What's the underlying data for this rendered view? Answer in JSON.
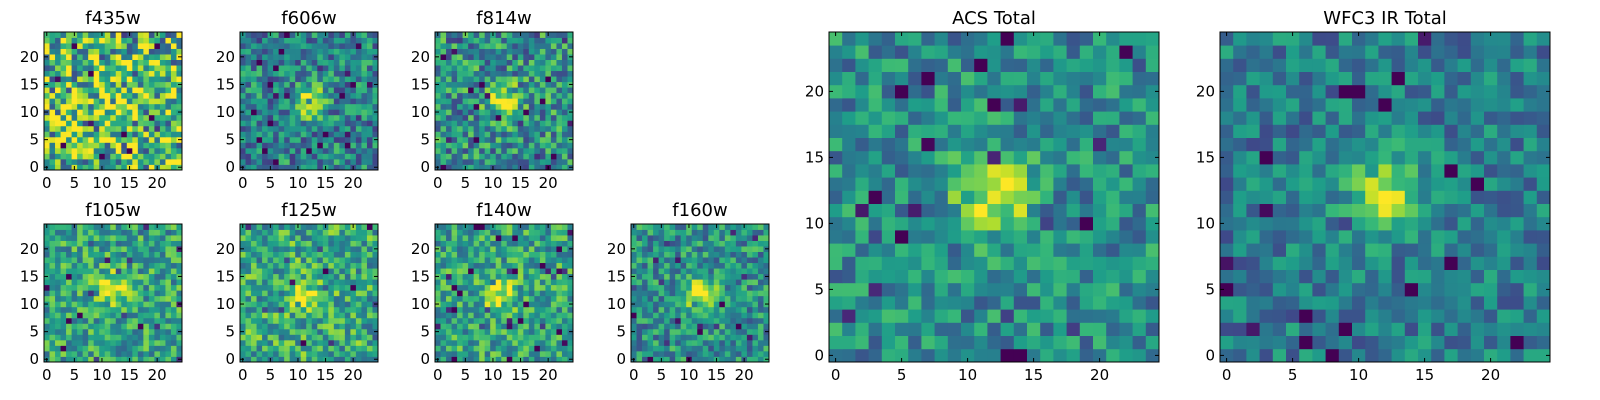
{
  "chart_data": [
    {
      "type": "heatmap",
      "title": "f435w",
      "x_ticks": [
        "0",
        "5",
        "10",
        "15",
        "20"
      ],
      "y_ticks": [
        "0",
        "5",
        "10",
        "15",
        "20"
      ],
      "xlim": [
        -0.5,
        24.5
      ],
      "ylim": [
        -0.5,
        24.5
      ],
      "pixels": 25,
      "colormap": "viridis",
      "source_peak": [
        12,
        12
      ],
      "source_strength": 0.1,
      "noise": 0.9,
      "base": 0.68,
      "seed": 11
    },
    {
      "type": "heatmap",
      "title": "f606w",
      "x_ticks": [
        "0",
        "5",
        "10",
        "15",
        "20"
      ],
      "y_ticks": [
        "0",
        "5",
        "10",
        "15",
        "20"
      ],
      "xlim": [
        -0.5,
        24.5
      ],
      "ylim": [
        -0.5,
        24.5
      ],
      "pixels": 25,
      "colormap": "viridis",
      "source_peak": [
        12,
        12
      ],
      "source_strength": 0.5,
      "noise": 0.55,
      "base": 0.45,
      "seed": 23
    },
    {
      "type": "heatmap",
      "title": "f814w",
      "x_ticks": [
        "0",
        "5",
        "10",
        "15",
        "20"
      ],
      "y_ticks": [
        "0",
        "5",
        "10",
        "15",
        "20"
      ],
      "xlim": [
        -0.5,
        24.5
      ],
      "ylim": [
        -0.5,
        24.5
      ],
      "pixels": 25,
      "colormap": "viridis",
      "source_peak": [
        12,
        12
      ],
      "source_strength": 0.5,
      "noise": 0.6,
      "base": 0.5,
      "seed": 37
    },
    {
      "type": "heatmap",
      "title": "f105w",
      "x_ticks": [
        "0",
        "5",
        "10",
        "15",
        "20"
      ],
      "y_ticks": [
        "0",
        "5",
        "10",
        "15",
        "20"
      ],
      "xlim": [
        -0.5,
        24.5
      ],
      "ylim": [
        -0.5,
        24.5
      ],
      "pixels": 25,
      "colormap": "viridis",
      "source_peak": [
        12,
        13
      ],
      "source_strength": 0.4,
      "noise": 0.5,
      "base": 0.58,
      "seed": 41
    },
    {
      "type": "heatmap",
      "title": "f125w",
      "x_ticks": [
        "0",
        "5",
        "10",
        "15",
        "20"
      ],
      "y_ticks": [
        "0",
        "5",
        "10",
        "15",
        "20"
      ],
      "xlim": [
        -0.5,
        24.5
      ],
      "ylim": [
        -0.5,
        24.5
      ],
      "pixels": 25,
      "colormap": "viridis",
      "source_peak": [
        12,
        11
      ],
      "source_strength": 0.35,
      "noise": 0.55,
      "base": 0.6,
      "seed": 53
    },
    {
      "type": "heatmap",
      "title": "f140w",
      "x_ticks": [
        "0",
        "5",
        "10",
        "15",
        "20"
      ],
      "y_ticks": [
        "0",
        "5",
        "10",
        "15",
        "20"
      ],
      "xlim": [
        -0.5,
        24.5
      ],
      "ylim": [
        -0.5,
        24.5
      ],
      "pixels": 25,
      "colormap": "viridis",
      "source_peak": [
        11,
        12
      ],
      "source_strength": 0.4,
      "noise": 0.5,
      "base": 0.58,
      "seed": 67
    },
    {
      "type": "heatmap",
      "title": "f160w",
      "x_ticks": [
        "0",
        "5",
        "10",
        "15",
        "20"
      ],
      "y_ticks": [
        "0",
        "5",
        "10",
        "15",
        "20"
      ],
      "xlim": [
        -0.5,
        24.5
      ],
      "ylim": [
        -0.5,
        24.5
      ],
      "pixels": 25,
      "colormap": "viridis",
      "source_peak": [
        12,
        12
      ],
      "source_strength": 0.55,
      "noise": 0.5,
      "base": 0.5,
      "seed": 79
    },
    {
      "type": "heatmap",
      "title": "ACS Total",
      "x_ticks": [
        "0",
        "5",
        "10",
        "15",
        "20"
      ],
      "y_ticks": [
        "0",
        "5",
        "10",
        "15",
        "20"
      ],
      "xlim": [
        -0.5,
        24.5
      ],
      "ylim": [
        -0.5,
        24.5
      ],
      "pixels": 25,
      "colormap": "viridis",
      "source_peak": [
        12,
        12
      ],
      "source_strength": 0.5,
      "noise": 0.45,
      "base": 0.48,
      "seed": 97
    },
    {
      "type": "heatmap",
      "title": "WFC3 IR Total",
      "x_ticks": [
        "0",
        "5",
        "10",
        "15",
        "20"
      ],
      "y_ticks": [
        "0",
        "5",
        "10",
        "15",
        "20"
      ],
      "xlim": [
        -0.5,
        24.5
      ],
      "ylim": [
        -0.5,
        24.5
      ],
      "pixels": 25,
      "colormap": "viridis",
      "source_peak": [
        12,
        12
      ],
      "source_strength": 0.55,
      "noise": 0.4,
      "base": 0.42,
      "seed": 113
    }
  ]
}
